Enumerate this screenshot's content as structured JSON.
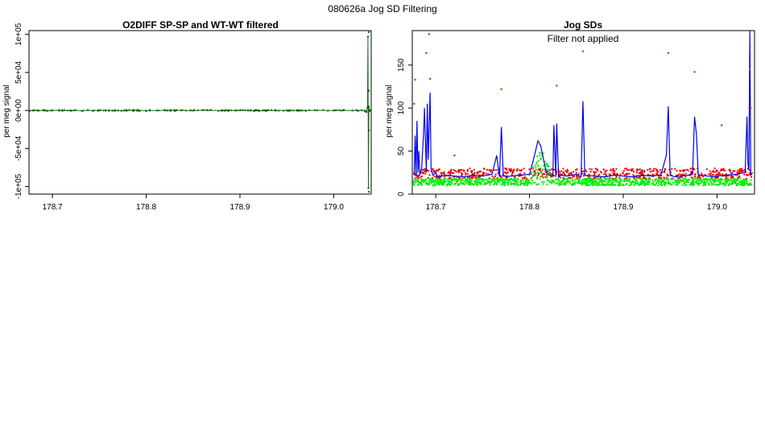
{
  "page_title": "080626a   Jog SD Filtering",
  "chart_data": [
    {
      "type": "line",
      "title": "O2DIFF SP-SP and WT-WT filtered",
      "subtitle": "",
      "xlabel": "",
      "ylabel": "per meg signal",
      "xlim": [
        178.675,
        179.04
      ],
      "ylim": [
        -110000,
        105000
      ],
      "x_ticks": [
        178.7,
        178.8,
        178.9,
        179.0
      ],
      "x_tick_labels": [
        "178.7",
        "178.8",
        "178.9",
        "179.0"
      ],
      "y_ticks": [
        -100000,
        -50000,
        0,
        50000,
        100000
      ],
      "y_tick_labels": [
        "-1e+05",
        "-5e+04",
        "0e+00",
        "5e+04",
        "1e+05"
      ],
      "grid": false,
      "colors": {
        "line": "#1a6b1a",
        "points": "#006400"
      },
      "series": [
        {
          "x": [
            178.676,
            178.68,
            178.685,
            178.69,
            178.695,
            178.7,
            178.72,
            178.75,
            178.77,
            178.79,
            178.8,
            178.82,
            178.83,
            178.85,
            178.86,
            178.88,
            178.9,
            178.92,
            178.95,
            178.97,
            178.98,
            179.0,
            179.01,
            179.02,
            179.03,
            179.034,
            179.035,
            179.036,
            179.0365,
            179.037,
            179.0375,
            179.038,
            179.039
          ],
          "y": [
            -500,
            300,
            -400,
            200,
            -300,
            100,
            -200,
            150,
            -100,
            200,
            -300,
            100,
            400,
            -200,
            300,
            -100,
            200,
            -300,
            100,
            -200,
            300,
            -100,
            200,
            -100,
            300,
            -1500,
            -2000,
            4000,
            97000,
            -102000,
            5000,
            -1000,
            500
          ]
        }
      ],
      "points": [
        {
          "x": 179.0375,
          "y": 103000
        },
        {
          "x": 179.0375,
          "y": 26000
        },
        {
          "x": 179.0375,
          "y": -26000
        },
        {
          "x": 179.0375,
          "y": -107000
        }
      ]
    },
    {
      "type": "line",
      "title": "Jog SDs",
      "subtitle": "Filter not applied",
      "xlabel": "",
      "ylabel": "per meg signal",
      "xlim": [
        178.675,
        179.04
      ],
      "ylim": [
        0,
        190
      ],
      "x_ticks": [
        178.7,
        178.8,
        178.9,
        179.0
      ],
      "x_tick_labels": [
        "178.7",
        "178.8",
        "178.9",
        "179.0"
      ],
      "y_ticks": [
        0,
        50,
        100,
        150
      ],
      "y_tick_labels": [
        "0",
        "50",
        "100",
        "150"
      ],
      "grid": false,
      "colors": {
        "blue": "#0000ee",
        "red": "#ee0000",
        "green": "#00ee00",
        "outliers": "#cc5500"
      },
      "blue_line": {
        "x": [
          178.677,
          178.678,
          178.679,
          178.68,
          178.681,
          178.682,
          178.683,
          178.685,
          178.687,
          178.688,
          178.69,
          178.691,
          178.692,
          178.694,
          178.695,
          178.697,
          178.7,
          178.702,
          178.71,
          178.72,
          178.73,
          178.74,
          178.75,
          178.76,
          178.765,
          178.768,
          178.77,
          178.772,
          178.775,
          178.78,
          178.79,
          178.8,
          178.803,
          178.806,
          178.809,
          178.812,
          178.815,
          178.818,
          178.821,
          178.825,
          178.826,
          178.828,
          178.829,
          178.831,
          178.833,
          178.84,
          178.85,
          178.855,
          178.857,
          178.859,
          178.87,
          178.88,
          178.89,
          178.9,
          178.91,
          178.92,
          178.93,
          178.94,
          178.946,
          178.948,
          178.95,
          178.955,
          178.96,
          178.97,
          178.974,
          178.976,
          178.978,
          178.98,
          178.99,
          179.0,
          179.002,
          179.005,
          179.01,
          179.02,
          179.03,
          179.032,
          179.033,
          179.034,
          179.035,
          179.036,
          179.038
        ],
        "y": [
          22,
          68,
          20,
          85,
          25,
          50,
          22,
          30,
          70,
          100,
          25,
          105,
          40,
          118,
          30,
          22,
          25,
          20,
          22,
          21,
          20,
          22,
          21,
          23,
          45,
          20,
          78,
          22,
          20,
          21,
          22,
          23,
          35,
          48,
          62,
          56,
          40,
          25,
          22,
          21,
          80,
          22,
          82,
          20,
          22,
          21,
          23,
          20,
          108,
          22,
          21,
          20,
          22,
          21,
          20,
          22,
          21,
          22,
          45,
          102,
          22,
          20,
          21,
          22,
          25,
          90,
          70,
          22,
          21,
          20,
          22,
          21,
          22,
          23,
          25,
          90,
          35,
          28,
          190,
          22,
          25
        ]
      },
      "green_band": {
        "base": [
          10,
          18
        ],
        "bump_x": [
          178.8,
          178.825
        ],
        "bump_peak": 50,
        "values_note": ""
      },
      "red_band": {
        "base": [
          18,
          30
        ]
      },
      "outlier_points": [
        {
          "x": 178.678,
          "y": 133
        },
        {
          "x": 178.69,
          "y": 164
        },
        {
          "x": 178.693,
          "y": 186
        },
        {
          "x": 178.694,
          "y": 134
        },
        {
          "x": 178.677,
          "y": 105
        },
        {
          "x": 178.77,
          "y": 122
        },
        {
          "x": 178.829,
          "y": 126
        },
        {
          "x": 178.857,
          "y": 166
        },
        {
          "x": 178.948,
          "y": 164
        },
        {
          "x": 178.976,
          "y": 142
        },
        {
          "x": 179.035,
          "y": 145
        },
        {
          "x": 179.036,
          "y": 100
        },
        {
          "x": 179.005,
          "y": 80
        },
        {
          "x": 178.72,
          "y": 45
        },
        {
          "x": 178.81,
          "y": 60
        }
      ]
    }
  ]
}
